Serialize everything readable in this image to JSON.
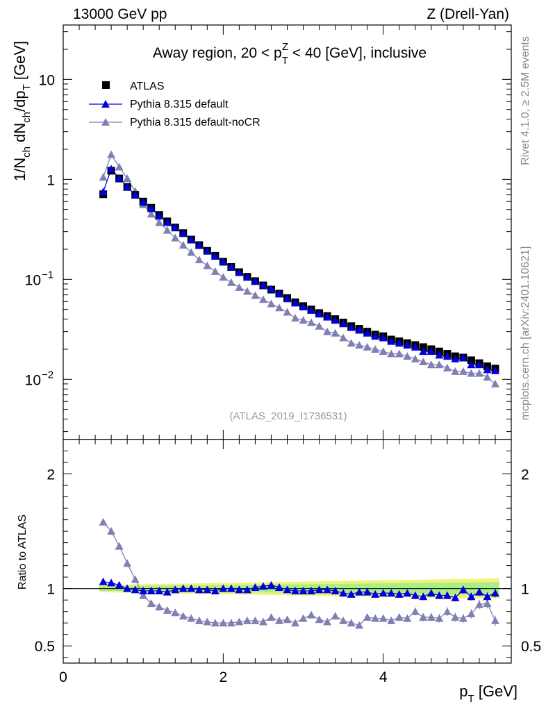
{
  "header": {
    "left": "13000 GeV pp",
    "right": "Z (Drell-Yan)"
  },
  "side_labels": {
    "rivet": "Rivet 4.1.0, ≥ 2.5M events",
    "mcplots": "mcplots.cern.ch [arXiv:2401.10621]"
  },
  "colors": {
    "atlas": "#000000",
    "default": "#0000dd",
    "nocr": "#8080b3",
    "band_yellow": "#f2f27a",
    "band_green": "#aaee88"
  },
  "chart_data": [
    {
      "type": "scatter",
      "panel": "main",
      "title_parts": [
        "Away region, 20 < p",
        "T",
        "Z",
        " < 40 [GeV], inclusive"
      ],
      "ylabel_parts": [
        "1/N",
        "ch",
        " dN",
        "ch",
        "/dp",
        "T",
        " [GeV]"
      ],
      "yscale": "log",
      "ylim": [
        0.0025,
        35
      ],
      "xlim": [
        0,
        5.6
      ],
      "yticks": [
        {
          "value": 0.01,
          "base": "10",
          "exp": "−2"
        },
        {
          "value": 0.1,
          "base": "10",
          "exp": "−1"
        },
        {
          "value": 1,
          "label": "1"
        },
        {
          "value": 10,
          "label": "10"
        }
      ],
      "watermark": "(ATLAS_2019_I1736531)",
      "legend": [
        "ATLAS",
        "Pythia 8.315 default",
        "Pythia 8.315 default-noCR"
      ],
      "x": [
        0.5,
        0.6,
        0.7,
        0.8,
        0.9,
        1.0,
        1.1,
        1.2,
        1.3,
        1.4,
        1.5,
        1.6,
        1.7,
        1.8,
        1.9,
        2.0,
        2.1,
        2.2,
        2.3,
        2.4,
        2.5,
        2.6,
        2.7,
        2.8,
        2.9,
        3.0,
        3.1,
        3.2,
        3.3,
        3.4,
        3.5,
        3.6,
        3.7,
        3.8,
        3.9,
        4.0,
        4.1,
        4.2,
        4.3,
        4.4,
        4.5,
        4.6,
        4.7,
        4.8,
        4.9,
        5.0,
        5.1,
        5.2,
        5.3,
        5.4
      ],
      "series": [
        {
          "name": "ATLAS",
          "values": [
            0.71,
            1.22,
            1.02,
            0.84,
            0.7,
            0.6,
            0.52,
            0.44,
            0.38,
            0.33,
            0.29,
            0.25,
            0.22,
            0.193,
            0.172,
            0.15,
            0.133,
            0.118,
            0.106,
            0.096,
            0.087,
            0.079,
            0.072,
            0.065,
            0.059,
            0.054,
            0.05,
            0.046,
            0.043,
            0.04,
            0.037,
            0.034,
            0.032,
            0.03,
            0.028,
            0.027,
            0.025,
            0.024,
            0.023,
            0.022,
            0.021,
            0.02,
            0.019,
            0.018,
            0.017,
            0.0165,
            0.0155,
            0.0145,
            0.0135,
            0.0128
          ]
        },
        {
          "name": "Pythia 8.315 default",
          "values": [
            0.75,
            1.27,
            1.03,
            0.84,
            0.7,
            0.59,
            0.51,
            0.43,
            0.37,
            0.33,
            0.29,
            0.25,
            0.22,
            0.192,
            0.17,
            0.15,
            0.133,
            0.117,
            0.105,
            0.096,
            0.087,
            0.08,
            0.072,
            0.064,
            0.058,
            0.053,
            0.049,
            0.045,
            0.042,
            0.039,
            0.036,
            0.033,
            0.031,
            0.029,
            0.027,
            0.026,
            0.024,
            0.023,
            0.022,
            0.021,
            0.019,
            0.019,
            0.0175,
            0.017,
            0.016,
            0.0165,
            0.014,
            0.014,
            0.0125,
            0.0122
          ]
        },
        {
          "name": "Pythia 8.315 default-noCR",
          "values": [
            1.05,
            1.77,
            1.33,
            1.02,
            0.76,
            0.56,
            0.45,
            0.37,
            0.31,
            0.26,
            0.22,
            0.186,
            0.157,
            0.137,
            0.12,
            0.105,
            0.093,
            0.083,
            0.076,
            0.069,
            0.063,
            0.057,
            0.052,
            0.047,
            0.041,
            0.039,
            0.037,
            0.034,
            0.03,
            0.029,
            0.026,
            0.023,
            0.022,
            0.021,
            0.02,
            0.019,
            0.018,
            0.018,
            0.017,
            0.016,
            0.015,
            0.014,
            0.014,
            0.013,
            0.012,
            0.012,
            0.0115,
            0.0115,
            0.0105,
            0.009
          ]
        }
      ]
    },
    {
      "type": "scatter",
      "panel": "ratio",
      "ylabel": "Ratio to ATLAS",
      "xlabel_parts": [
        "p",
        "T",
        " [GeV]"
      ],
      "ylim": [
        0.35,
        2.3
      ],
      "xlim": [
        0,
        5.6
      ],
      "xticks": [
        0,
        2,
        4
      ],
      "yticks": [
        0.5,
        1,
        2
      ],
      "reference": 1.0,
      "x": [
        0.5,
        0.6,
        0.7,
        0.8,
        0.9,
        1.0,
        1.1,
        1.2,
        1.3,
        1.4,
        1.5,
        1.6,
        1.7,
        1.8,
        1.9,
        2.0,
        2.1,
        2.2,
        2.3,
        2.4,
        2.5,
        2.6,
        2.7,
        2.8,
        2.9,
        3.0,
        3.1,
        3.2,
        3.3,
        3.4,
        3.5,
        3.6,
        3.7,
        3.8,
        3.9,
        4.0,
        4.1,
        4.2,
        4.3,
        4.4,
        4.5,
        4.6,
        4.7,
        4.8,
        4.9,
        5.0,
        5.1,
        5.2,
        5.3,
        5.4
      ],
      "series": [
        {
          "name": "Pythia 8.315 default",
          "values": [
            1.06,
            1.05,
            1.03,
            1.0,
            0.99,
            0.98,
            0.98,
            0.98,
            0.97,
            0.99,
            1.0,
            1.0,
            0.99,
            0.99,
            0.98,
            1.0,
            1.0,
            0.99,
            0.99,
            1.01,
            1.02,
            1.03,
            1.01,
            0.99,
            0.98,
            0.98,
            0.98,
            0.99,
            0.99,
            0.98,
            0.96,
            0.95,
            0.97,
            0.97,
            0.95,
            0.96,
            0.96,
            0.95,
            0.96,
            0.94,
            0.93,
            0.96,
            0.94,
            0.94,
            0.92,
            0.99,
            0.93,
            0.97,
            0.93,
            0.96
          ]
        },
        {
          "name": "Pythia 8.315 default-noCR",
          "values": [
            1.58,
            1.5,
            1.37,
            1.22,
            1.08,
            0.94,
            0.87,
            0.84,
            0.81,
            0.79,
            0.76,
            0.74,
            0.72,
            0.71,
            0.7,
            0.7,
            0.7,
            0.71,
            0.72,
            0.72,
            0.71,
            0.75,
            0.72,
            0.73,
            0.7,
            0.74,
            0.77,
            0.73,
            0.71,
            0.76,
            0.72,
            0.7,
            0.68,
            0.75,
            0.74,
            0.74,
            0.72,
            0.75,
            0.74,
            0.8,
            0.75,
            0.75,
            0.74,
            0.8,
            0.75,
            0.74,
            0.78,
            0.86,
            0.87,
            0.72
          ]
        }
      ]
    }
  ]
}
